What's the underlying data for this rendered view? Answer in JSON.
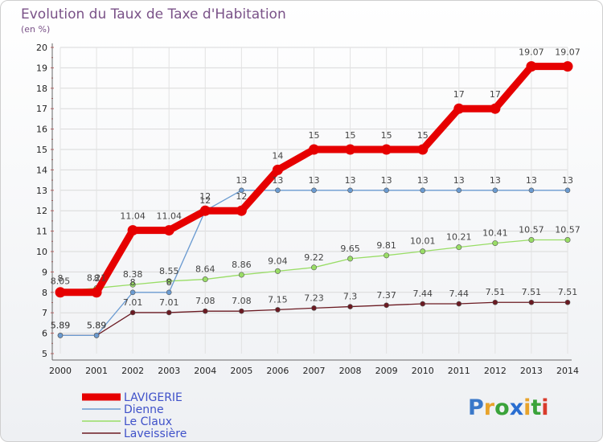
{
  "chart_data": {
    "type": "line",
    "title": "Evolution du Taux de Taxe d'Habitation",
    "ylabel": "(en %)",
    "xlabel": "",
    "ylim": [
      5,
      20
    ],
    "yticks": [
      5,
      6,
      7,
      8,
      9,
      10,
      11,
      12,
      13,
      14,
      15,
      16,
      17,
      18,
      19,
      20
    ],
    "categories": [
      "2000",
      "2001",
      "2002",
      "2003",
      "2004",
      "2005",
      "2006",
      "2007",
      "2008",
      "2009",
      "2010",
      "2011",
      "2012",
      "2013",
      "2014"
    ],
    "series": [
      {
        "name": "LAVIGERIE",
        "color": "#e60000",
        "values": [
          8,
          8,
          11.04,
          11.04,
          12,
          12,
          14,
          15,
          15,
          15,
          15,
          17,
          17,
          19.07,
          19.07
        ],
        "labels": [
          "8",
          "8",
          "11.04",
          "11.04",
          "12",
          "12",
          "14",
          "15",
          "15",
          "15",
          "15",
          "17",
          "17",
          "19.07",
          "19.07"
        ]
      },
      {
        "name": "Dienne",
        "color": "#6b9bd1",
        "values": [
          5.89,
          5.89,
          8,
          8,
          12,
          13,
          13,
          13,
          13,
          13,
          13,
          13,
          13,
          13,
          13
        ],
        "labels": [
          "5.89",
          "5.89",
          "8",
          "8",
          "12",
          "13",
          "13",
          "13",
          "13",
          "13",
          "13",
          "13",
          "13",
          "13",
          "13"
        ]
      },
      {
        "name": "Le Claux",
        "color": "#99dd66",
        "values": [
          8.05,
          8.21,
          8.38,
          8.55,
          8.64,
          8.86,
          9.04,
          9.22,
          9.65,
          9.81,
          10.01,
          10.21,
          10.41,
          10.57,
          10.57
        ],
        "labels": [
          "8.05",
          "8.21",
          "8.38",
          "8.55",
          "8.64",
          "8.86",
          "9.04",
          "9.22",
          "9.65",
          "9.81",
          "10.01",
          "10.21",
          "10.41",
          "10.57",
          "10.57"
        ]
      },
      {
        "name": "Laveissière",
        "color": "#6b1a22",
        "values": [
          5.89,
          5.89,
          7.01,
          7.01,
          7.08,
          7.08,
          7.15,
          7.23,
          7.3,
          7.37,
          7.44,
          7.44,
          7.51,
          7.51,
          7.51
        ],
        "labels": [
          "5.89",
          "5.89",
          "7.01",
          "7.01",
          "7.08",
          "7.08",
          "7.15",
          "7.23",
          "7.3",
          "7.37",
          "7.44",
          "7.44",
          "7.51",
          "7.51",
          "7.51"
        ]
      }
    ],
    "legend_position": "bottom-left"
  },
  "logo": {
    "text": "Proxiti",
    "letters": [
      {
        "char": "P",
        "color": "#3a78c9"
      },
      {
        "char": "r",
        "color": "#e8a32b"
      },
      {
        "char": "o",
        "color": "#3aa33a"
      },
      {
        "char": "x",
        "color": "#2a6ed1"
      },
      {
        "char": "i",
        "color": "#e8a32b"
      },
      {
        "char": "t",
        "color": "#3aa33a"
      },
      {
        "char": "i",
        "color": "#d93b2b"
      }
    ]
  }
}
